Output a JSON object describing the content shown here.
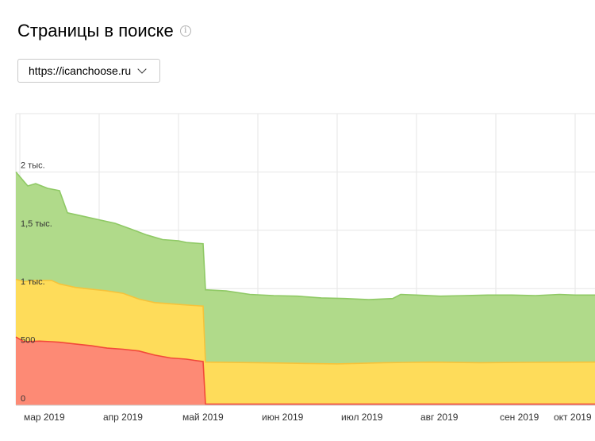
{
  "header": {
    "title": "Страницы в поиске",
    "info_icon": "info-icon"
  },
  "site_select": {
    "value": "https://icanchoose.ru",
    "icon": "chevron-down-icon"
  },
  "colors": {
    "green": "#b0da8a",
    "green_line": "#8fc965",
    "yellow": "#fedc5a",
    "yellow_line": "#f5c33b",
    "red": "#fd8a75",
    "red_line": "#f2483a"
  },
  "chart_data": {
    "type": "area",
    "stacked": true,
    "ylim": [
      0,
      2500
    ],
    "y_ticks": [
      {
        "value": 0,
        "label": "0"
      },
      {
        "value": 500,
        "label": "500"
      },
      {
        "value": 1000,
        "label": "1 тыс."
      },
      {
        "value": 1500,
        "label": "1,5 тыс."
      },
      {
        "value": 2000,
        "label": "2 тыс."
      }
    ],
    "x_ticks": [
      "мар 2019",
      "апр 2019",
      "май 2019",
      "июн 2019",
      "июл 2019",
      "авг 2019",
      "сен 2019",
      "окт 2019"
    ],
    "x_range_months": [
      -0.05,
      7.25
    ],
    "grid": true,
    "series": [
      {
        "key": "red",
        "points": [
          [
            -0.05,
            585
          ],
          [
            0.05,
            545
          ],
          [
            0.25,
            550
          ],
          [
            0.4,
            545
          ],
          [
            0.5,
            540
          ],
          [
            0.7,
            525
          ],
          [
            0.9,
            510
          ],
          [
            1.1,
            490
          ],
          [
            1.3,
            480
          ],
          [
            1.5,
            465
          ],
          [
            1.7,
            430
          ],
          [
            1.9,
            405
          ],
          [
            2.1,
            395
          ],
          [
            2.2,
            385
          ],
          [
            2.31,
            375
          ],
          [
            2.34,
            10
          ],
          [
            7.25,
            10
          ]
        ]
      },
      {
        "key": "yellow",
        "points": [
          [
            -0.05,
            1080
          ],
          [
            0.05,
            1060
          ],
          [
            0.2,
            1070
          ],
          [
            0.4,
            1070
          ],
          [
            0.5,
            1040
          ],
          [
            0.7,
            1010
          ],
          [
            0.9,
            995
          ],
          [
            1.1,
            980
          ],
          [
            1.3,
            960
          ],
          [
            1.5,
            910
          ],
          [
            1.7,
            880
          ],
          [
            1.9,
            870
          ],
          [
            2.1,
            860
          ],
          [
            2.2,
            855
          ],
          [
            2.31,
            850
          ],
          [
            2.34,
            370
          ],
          [
            3.0,
            365
          ],
          [
            3.5,
            360
          ],
          [
            4.0,
            355
          ],
          [
            4.6,
            365
          ],
          [
            5.2,
            370
          ],
          [
            5.8,
            365
          ],
          [
            6.4,
            368
          ],
          [
            7.25,
            370
          ]
        ]
      },
      {
        "key": "green",
        "points": [
          [
            -0.05,
            2000
          ],
          [
            0.0,
            1960
          ],
          [
            0.1,
            1880
          ],
          [
            0.2,
            1900
          ],
          [
            0.35,
            1860
          ],
          [
            0.5,
            1840
          ],
          [
            0.6,
            1650
          ],
          [
            0.8,
            1620
          ],
          [
            1.0,
            1590
          ],
          [
            1.2,
            1560
          ],
          [
            1.4,
            1510
          ],
          [
            1.6,
            1460
          ],
          [
            1.8,
            1420
          ],
          [
            2.0,
            1410
          ],
          [
            2.1,
            1395
          ],
          [
            2.31,
            1385
          ],
          [
            2.34,
            990
          ],
          [
            2.6,
            980
          ],
          [
            2.9,
            950
          ],
          [
            3.2,
            940
          ],
          [
            3.5,
            935
          ],
          [
            3.8,
            920
          ],
          [
            4.1,
            915
          ],
          [
            4.4,
            905
          ],
          [
            4.7,
            915
          ],
          [
            4.8,
            950
          ],
          [
            5.0,
            945
          ],
          [
            5.3,
            935
          ],
          [
            5.6,
            940
          ],
          [
            5.9,
            945
          ],
          [
            6.2,
            945
          ],
          [
            6.5,
            940
          ],
          [
            6.8,
            950
          ],
          [
            7.0,
            945
          ],
          [
            7.25,
            945
          ]
        ]
      }
    ]
  }
}
